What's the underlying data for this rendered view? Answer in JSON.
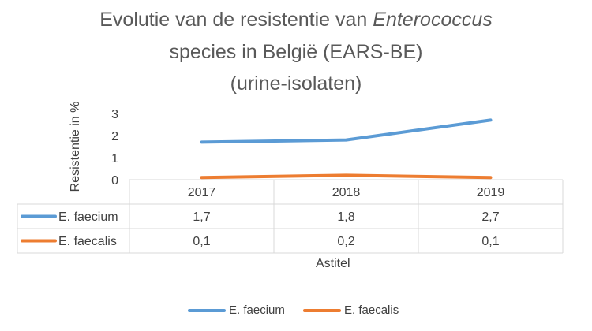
{
  "chart_data": {
    "type": "line",
    "title_line1_prefix": "Evolutie van de resistentie van ",
    "title_line1_italic": "Enterococcus",
    "title_line2": "species in België (EARS-BE)",
    "title_line3": "(urine-isolaten)",
    "xlabel": "Astitel",
    "ylabel": "Resistentie in %",
    "categories": [
      "2017",
      "2018",
      "2019"
    ],
    "yticks": [
      "0",
      "1",
      "2",
      "3"
    ],
    "ylim": [
      0,
      3
    ],
    "legend_position": "bottom",
    "series": [
      {
        "name": "E. faecium",
        "values": [
          1.7,
          1.8,
          2.7
        ],
        "labels": [
          "1,7",
          "1,8",
          "2,7"
        ],
        "color": "#5B9BD5"
      },
      {
        "name": "E. faecalis",
        "values": [
          0.1,
          0.2,
          0.1
        ],
        "labels": [
          "0,1",
          "0,2",
          "0,1"
        ],
        "color": "#ED7D31"
      }
    ]
  }
}
